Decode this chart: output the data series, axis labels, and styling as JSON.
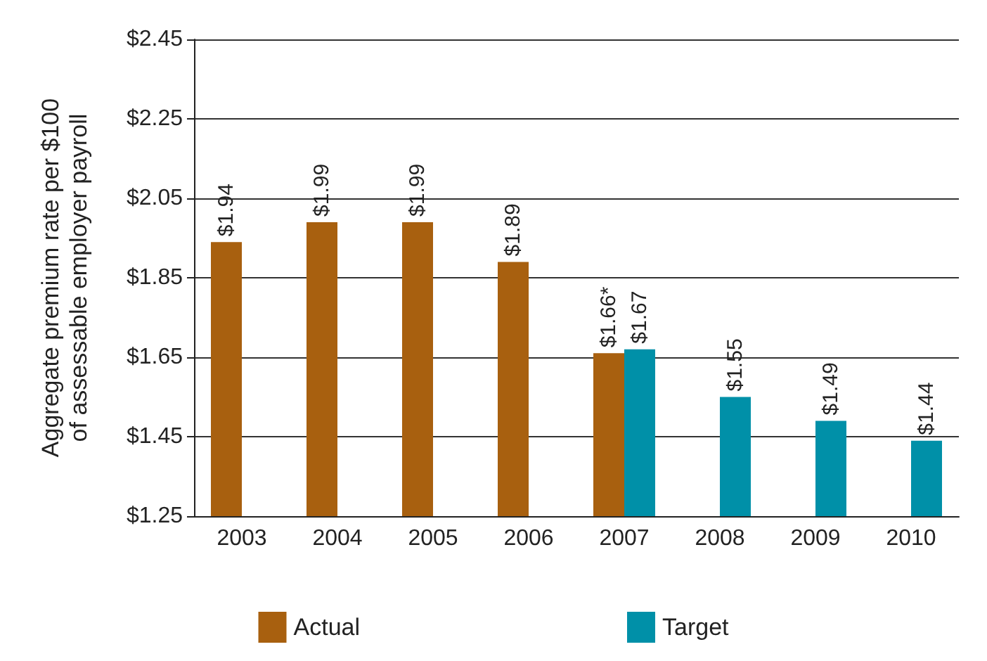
{
  "chart_data": {
    "type": "bar",
    "ylabel": "Aggregate premium rate per $100 of assessable employer payroll",
    "categories": [
      "2003",
      "2004",
      "2005",
      "2006",
      "2007",
      "2008",
      "2009",
      "2010"
    ],
    "series": [
      {
        "name": "Actual",
        "color": "#a8600f",
        "values": [
          1.94,
          1.99,
          1.99,
          1.89,
          1.66,
          null,
          null,
          null
        ],
        "value_labels": [
          "$1.94",
          "$1.99",
          "$1.99",
          "$1.89",
          "$1.66*",
          null,
          null,
          null
        ]
      },
      {
        "name": "Target",
        "color": "#0090a8",
        "values": [
          null,
          null,
          null,
          null,
          1.67,
          1.55,
          1.49,
          1.44
        ],
        "value_labels": [
          null,
          null,
          null,
          null,
          "$1.67",
          "$1.55",
          "$1.49",
          "$1.44"
        ]
      }
    ],
    "ylim": [
      1.25,
      2.45
    ],
    "yticks": [
      {
        "value": 1.25,
        "label": "$1.25"
      },
      {
        "value": 1.45,
        "label": "$1.45"
      },
      {
        "value": 1.65,
        "label": "$1.65"
      },
      {
        "value": 1.85,
        "label": "$1.85"
      },
      {
        "value": 2.05,
        "label": "$2.05"
      },
      {
        "value": 2.25,
        "label": "$2.25"
      },
      {
        "value": 2.45,
        "label": "$2.45"
      }
    ],
    "grid": "y",
    "legend": "bottom"
  }
}
